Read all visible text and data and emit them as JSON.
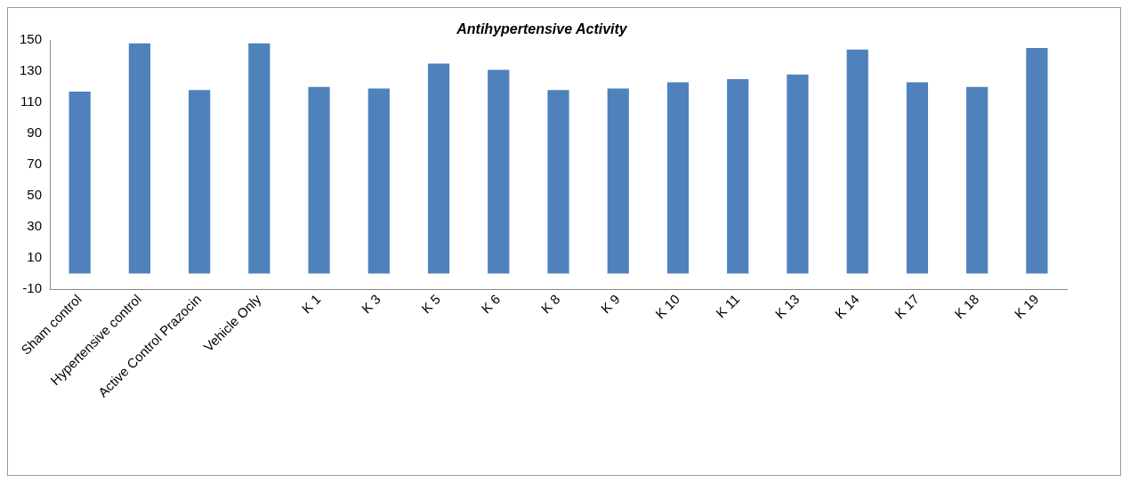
{
  "chart_data": {
    "type": "bar",
    "title": "Antihypertensive Activity",
    "categories": [
      "Sham control",
      "Hypertensive control",
      "Active Control Prazocin",
      "Vehicle Only",
      "K 1",
      "K 3",
      "K 5",
      "K 6",
      "K 8",
      "K 9",
      "K 10",
      "K 11",
      "K 13",
      "K 14",
      "K 17",
      "K 18",
      "K 19"
    ],
    "values": [
      117,
      148,
      118,
      148,
      120,
      119,
      135,
      131,
      118,
      119,
      123,
      125,
      128,
      144,
      123,
      120,
      145
    ],
    "color": "#4f81bd",
    "ylim": [
      -10,
      150
    ],
    "yticks": [
      -10,
      10,
      30,
      50,
      70,
      90,
      110,
      130,
      150
    ],
    "grid": false,
    "legend": false
  }
}
